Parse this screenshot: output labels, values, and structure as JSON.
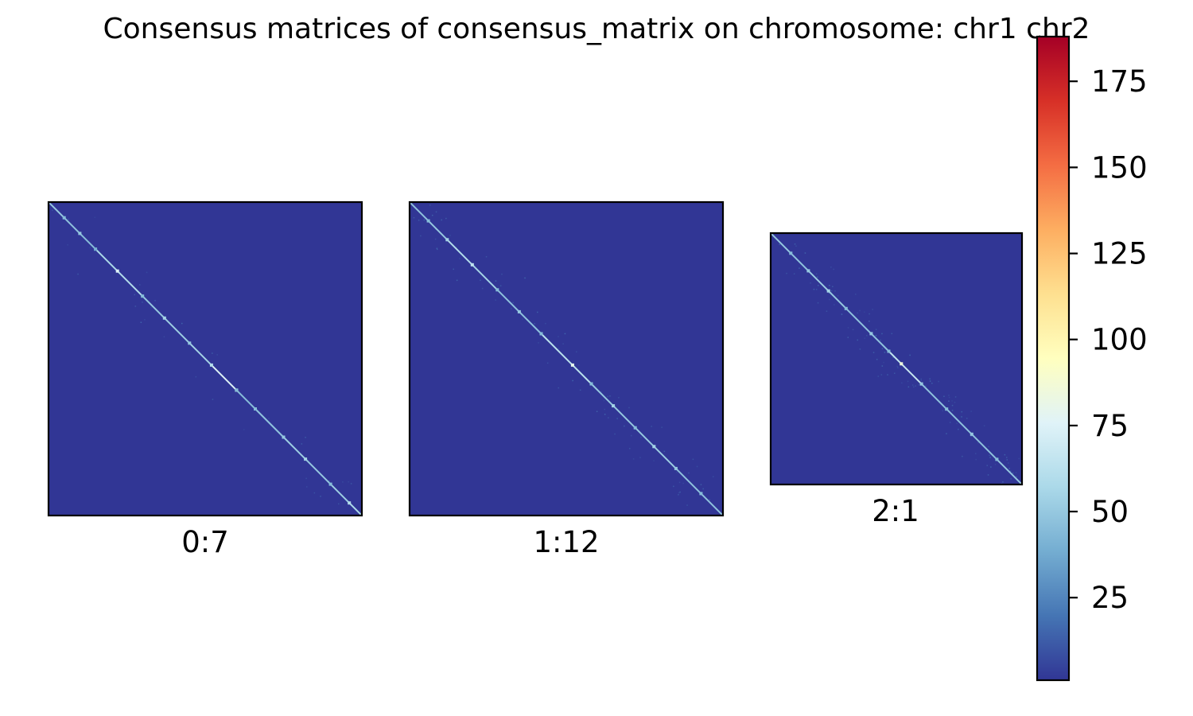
{
  "title": "Consensus matrices of consensus_matrix on chromosome: chr1 chr2",
  "chart_data": {
    "type": "heatmap",
    "title": "Consensus matrices of consensus_matrix on chromosome: chr1 chr2",
    "colormap": "RdYlBu_r",
    "background_value": 1,
    "panels": [
      {
        "label": "0:7",
        "diagonal": [
          {
            "t": 0.0,
            "v": 55
          },
          {
            "t": 0.05,
            "v": 45
          },
          {
            "t": 0.1,
            "v": 50
          },
          {
            "t": 0.15,
            "v": 40
          },
          {
            "t": 0.22,
            "v": 75
          },
          {
            "t": 0.3,
            "v": 45
          },
          {
            "t": 0.37,
            "v": 55
          },
          {
            "t": 0.45,
            "v": 50
          },
          {
            "t": 0.52,
            "v": 60
          },
          {
            "t": 0.6,
            "v": 90
          },
          {
            "t": 0.6,
            "v": 45
          },
          {
            "t": 0.66,
            "v": 45
          },
          {
            "t": 0.75,
            "v": 50
          },
          {
            "t": 0.82,
            "v": 55
          },
          {
            "t": 0.9,
            "v": 45
          },
          {
            "t": 0.96,
            "v": 60
          },
          {
            "t": 1.0,
            "v": 55
          }
        ],
        "off_diagonal_noise": 0.15
      },
      {
        "label": "1:12",
        "diagonal": [
          {
            "t": 0.0,
            "v": 50
          },
          {
            "t": 0.06,
            "v": 45
          },
          {
            "t": 0.12,
            "v": 55
          },
          {
            "t": 0.2,
            "v": 65
          },
          {
            "t": 0.28,
            "v": 45
          },
          {
            "t": 0.35,
            "v": 50
          },
          {
            "t": 0.42,
            "v": 45
          },
          {
            "t": 0.52,
            "v": 80
          },
          {
            "t": 0.58,
            "v": 45
          },
          {
            "t": 0.65,
            "v": 55
          },
          {
            "t": 0.72,
            "v": 45
          },
          {
            "t": 0.78,
            "v": 55
          },
          {
            "t": 0.85,
            "v": 50
          },
          {
            "t": 0.93,
            "v": 45
          },
          {
            "t": 1.0,
            "v": 50
          }
        ],
        "off_diagonal_noise": 0.35
      },
      {
        "label": "2:1",
        "diagonal": [
          {
            "t": 0.0,
            "v": 55
          },
          {
            "t": 0.08,
            "v": 45
          },
          {
            "t": 0.15,
            "v": 50
          },
          {
            "t": 0.23,
            "v": 55
          },
          {
            "t": 0.3,
            "v": 45
          },
          {
            "t": 0.4,
            "v": 50
          },
          {
            "t": 0.47,
            "v": 45
          },
          {
            "t": 0.52,
            "v": 85
          },
          {
            "t": 0.6,
            "v": 50
          },
          {
            "t": 0.7,
            "v": 45
          },
          {
            "t": 0.8,
            "v": 50
          },
          {
            "t": 0.9,
            "v": 45
          },
          {
            "t": 1.0,
            "v": 55
          }
        ],
        "off_diagonal_noise": 0.5
      }
    ],
    "colorbar": {
      "min": 1,
      "max": 188,
      "ticks": [
        25,
        50,
        75,
        100,
        125,
        150,
        175
      ]
    }
  }
}
